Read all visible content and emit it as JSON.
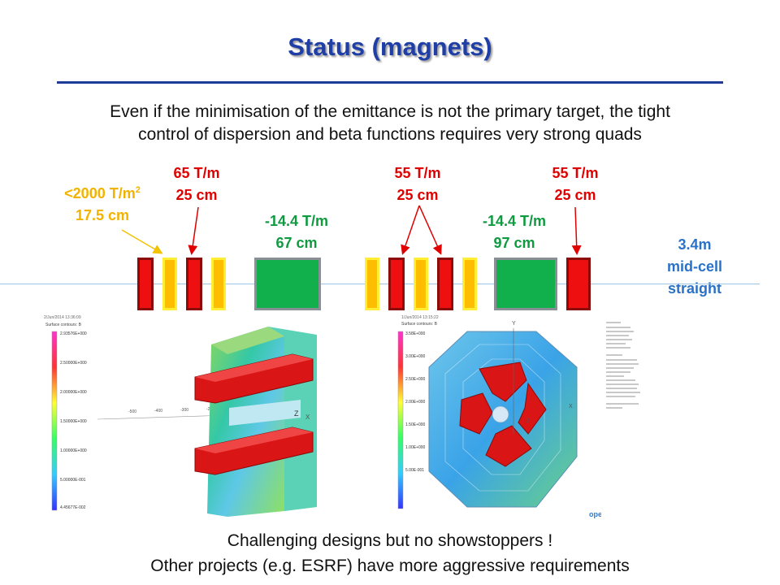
{
  "slide": {
    "title": "Status (magnets)",
    "intro_line1": "Even if the minimisation of the emittance is not the primary target, the tight",
    "intro_line2": "control of dispersion and beta functions requires very strong quads",
    "footer_line1": "Challenging designs but no showstoppers !",
    "footer_line2": "Other projects (e.g. ESRF) have more aggressive requirements"
  },
  "labels": {
    "sextupole": {
      "strength": "<2000 T/m",
      "sup": "2",
      "length": "17.5 cm"
    },
    "dipole_quad_1": {
      "strength": "65 T/m",
      "length": "25 cm"
    },
    "quad_1": {
      "strength": "-14.4 T/m",
      "length": "67 cm"
    },
    "dipole_quad_2": {
      "strength": "55 T/m",
      "length": "25 cm"
    },
    "quad_2": {
      "strength": "-14.4 T/m",
      "length": "97 cm"
    },
    "dipole_quad_3": {
      "strength": "55 T/m",
      "length": "25 cm"
    },
    "straight": {
      "line1": "3.4m",
      "line2": "mid-cell",
      "line3": "straight"
    }
  },
  "simulation": {
    "software_label": "opera",
    "scale1_ticks": [
      "2.93576E+000",
      "2.50000E+000",
      "2.00000E+000",
      "1.50000E+000",
      "1.00000E+000",
      "5.00000E-001",
      "4.45677E-002"
    ],
    "scale2_ticks": [
      "3.58E+000",
      "3.00E+000",
      "2.50E+000",
      "2.00E+000",
      "1.50E+000",
      "1.00E+000",
      "5.00E-001"
    ],
    "axis_labels": [
      "X",
      "Y",
      "Z"
    ]
  },
  "colors": {
    "title": "#1f3fa6",
    "dipole": "#ee1010",
    "sextupole": "#ffbd00",
    "quadrupole": "#11b04c",
    "strength_red": "#e00000",
    "strength_green": "#0f9a40",
    "strength_orange": "#f2b200",
    "straight_blue": "#2a72c7"
  }
}
